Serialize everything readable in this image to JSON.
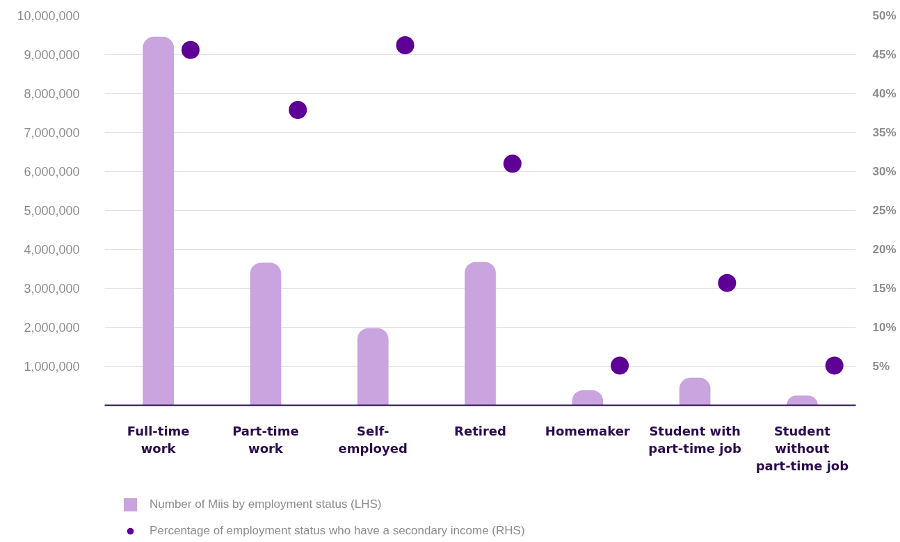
{
  "chart_data": {
    "type": "bar",
    "categories": [
      "Full-time work",
      "Part-time work",
      "Self-employed",
      "Retired",
      "Homemaker",
      "Student with part-time job",
      "Student without part-time job"
    ],
    "series": [
      {
        "name": "Number of Miis by employment status (LHS)",
        "color": "#caa4df",
        "values": [
          9460000,
          3660000,
          1980000,
          3680000,
          390000,
          710000,
          250000
        ]
      },
      {
        "name": "Percentage of employment status who have a secondary income (RHS)",
        "type": "scatter",
        "axis": "y2",
        "color": "#5e0096",
        "values": [
          45.6,
          37.9,
          46.2,
          31.0,
          5.1,
          15.7,
          5.1
        ]
      }
    ],
    "ylim": [
      0,
      10000000
    ],
    "yticks": [
      {
        "value": 1000000,
        "label": "1,000,000"
      },
      {
        "value": 2000000,
        "label": "2,000,000"
      },
      {
        "value": 3000000,
        "label": "3,000,000"
      },
      {
        "value": 4000000,
        "label": "4,000,000"
      },
      {
        "value": 5000000,
        "label": "5,000,000"
      },
      {
        "value": 6000000,
        "label": "6,000,000"
      },
      {
        "value": 7000000,
        "label": "7,000,000"
      },
      {
        "value": 8000000,
        "label": "8,000,000"
      },
      {
        "value": 9000000,
        "label": "9,000,000"
      },
      {
        "value": 10000000,
        "label": "10,000,000"
      }
    ],
    "y2lim": [
      0,
      50
    ],
    "y2ticks": [
      {
        "value": 5,
        "label": "5%"
      },
      {
        "value": 10,
        "label": "10%"
      },
      {
        "value": 15,
        "label": "15%"
      },
      {
        "value": 20,
        "label": "20%"
      },
      {
        "value": 25,
        "label": "25%"
      },
      {
        "value": 30,
        "label": "30%"
      },
      {
        "value": 35,
        "label": "35%"
      },
      {
        "value": 40,
        "label": "40%"
      },
      {
        "value": 45,
        "label": "45%"
      },
      {
        "value": 50,
        "label": "50%"
      }
    ],
    "grid": "y",
    "legend": "bottom left",
    "marker": "circle"
  }
}
